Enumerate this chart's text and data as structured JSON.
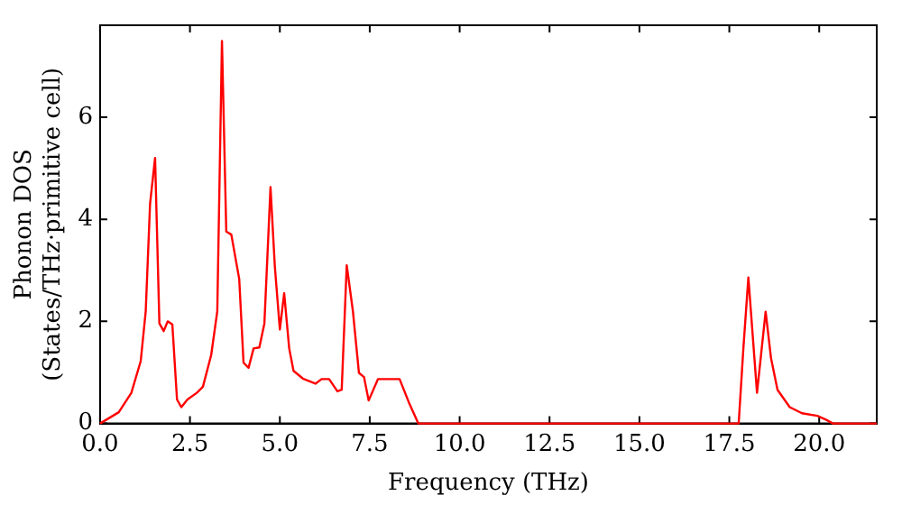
{
  "chart_data": {
    "type": "line",
    "xlabel": "Frequency (THz)",
    "ylabel": "Phonon DOS\n(States/THz·primitive cell)",
    "xlim": [
      0,
      21.6
    ],
    "ylim": [
      0,
      7.8
    ],
    "xticks": [
      {
        "value": 0,
        "label": "0.0"
      },
      {
        "value": 2.5,
        "label": "2.5"
      },
      {
        "value": 5,
        "label": "5.0"
      },
      {
        "value": 7.5,
        "label": "7.5"
      },
      {
        "value": 10,
        "label": "10.0"
      },
      {
        "value": 12.5,
        "label": "12.5"
      },
      {
        "value": 15,
        "label": "15.0"
      },
      {
        "value": 17.5,
        "label": "17.5"
      },
      {
        "value": 20,
        "label": "20.0"
      }
    ],
    "yticks": [
      0,
      2,
      4,
      6
    ],
    "grid": false,
    "legend": false,
    "marker": "none",
    "line_style": "solid",
    "series": [
      {
        "color": "#ff0000",
        "x": [
          0,
          0.52,
          0.87,
          1.13,
          1.27,
          1.39,
          1.53,
          1.65,
          1.77,
          1.88,
          2.01,
          2.14,
          2.26,
          2.43,
          2.69,
          2.86,
          3.09,
          3.26,
          3.39,
          3.51,
          3.65,
          3.87,
          3.99,
          4.13,
          4.27,
          4.43,
          4.57,
          4.74,
          4.86,
          5.0,
          5.12,
          5.26,
          5.38,
          5.64,
          5.99,
          6.16,
          6.37,
          6.6,
          6.72,
          6.86,
          7.03,
          7.2,
          7.34,
          7.47,
          7.73,
          8.33,
          8.59,
          8.85,
          17.76,
          17.89,
          18.03,
          18.27,
          18.51,
          18.66,
          18.84,
          19.18,
          19.52,
          19.95,
          20.2,
          20.38,
          21.6
        ],
        "values": [
          0,
          0.22,
          0.6,
          1.22,
          2.2,
          4.3,
          5.2,
          1.96,
          1.81,
          2.0,
          1.94,
          0.47,
          0.32,
          0.47,
          0.6,
          0.72,
          1.34,
          2.2,
          7.49,
          3.76,
          3.7,
          2.83,
          1.19,
          1.09,
          1.47,
          1.49,
          1.96,
          4.63,
          3.08,
          1.84,
          2.55,
          1.47,
          1.03,
          0.88,
          0.78,
          0.87,
          0.87,
          0.63,
          0.66,
          3.1,
          2.21,
          0.99,
          0.91,
          0.45,
          0.87,
          0.87,
          0.41,
          0,
          0,
          1.46,
          2.86,
          0.6,
          2.19,
          1.28,
          0.66,
          0.32,
          0.2,
          0.15,
          0.07,
          0,
          0
        ]
      }
    ]
  }
}
